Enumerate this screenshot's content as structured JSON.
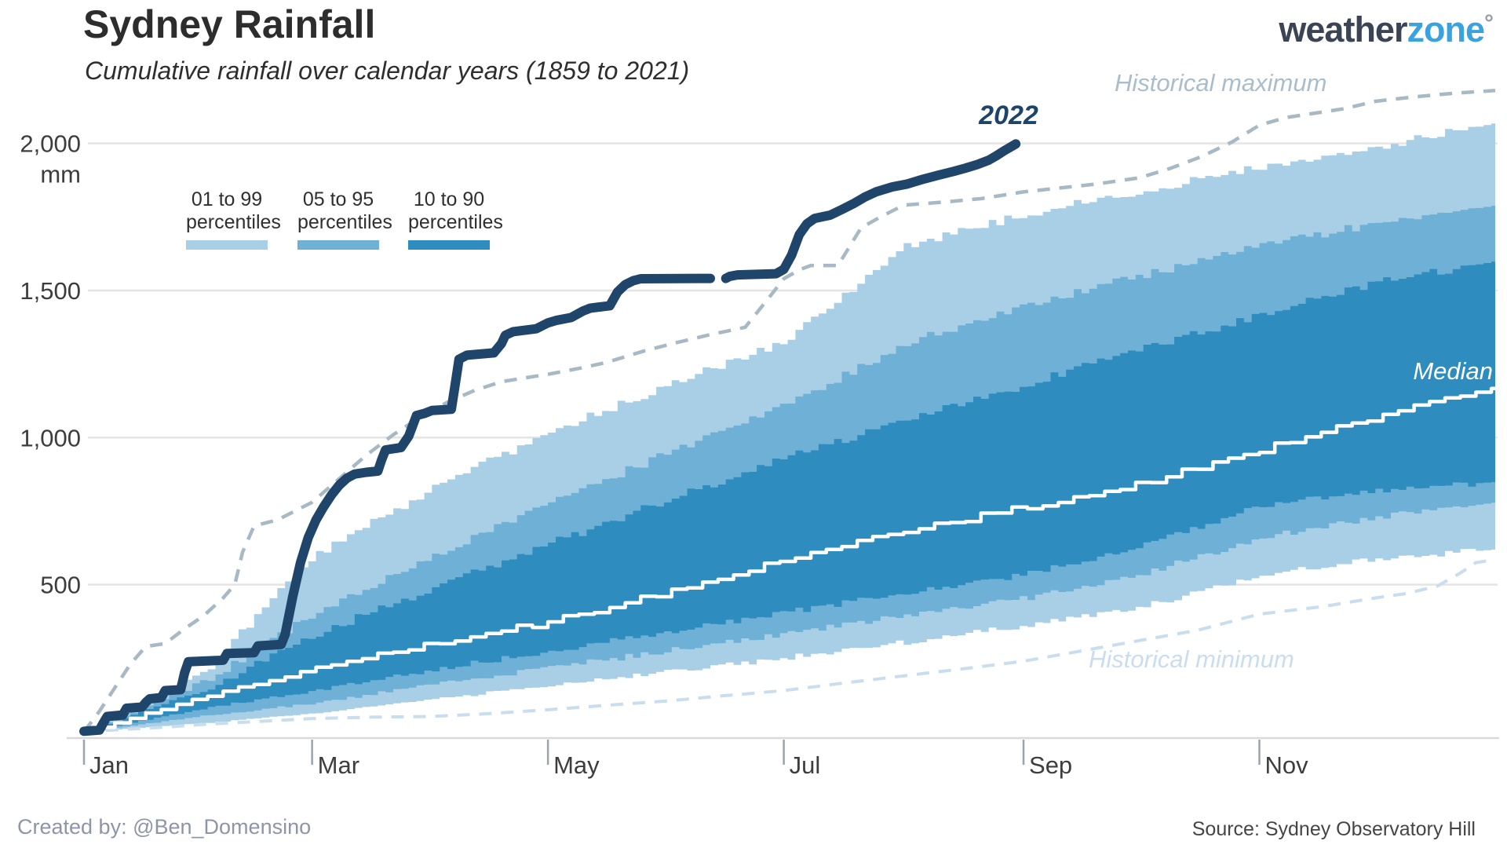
{
  "header": {
    "title": "Sydney Rainfall",
    "subtitle": "Cumulative rainfall over calendar years (1859 to 2021)"
  },
  "logo": {
    "part1": "weather",
    "part2": "zone",
    "degree": "°"
  },
  "legend": {
    "items": [
      {
        "line1": "01 to 99",
        "line2": "percentiles",
        "color": "#a9cfe6"
      },
      {
        "line1": "05 to 95",
        "line2": "percentiles",
        "color": "#6fb0d6"
      },
      {
        "line1": "10 to 90",
        "line2": "percentiles",
        "color": "#2e8cbe"
      }
    ]
  },
  "annotations": {
    "series_2022": "2022",
    "historical_max": "Historical maximum",
    "historical_min": "Historical minimum",
    "median": "Median"
  },
  "footer": {
    "created_by": "Created by: @Ben_Domensino",
    "source": "Source: Sydney Observatory Hill"
  },
  "colors": {
    "band_light": "#a9cfe6",
    "band_medium": "#6fb0d6",
    "band_dark": "#2e8cbe",
    "line_2022": "#1f456b",
    "median_line": "#ffffff",
    "hist_max_line": "#a7b9c5",
    "hist_min_line": "#c8ddee",
    "gridline": "#e4e4e4",
    "axis_line": "#d9d9d9",
    "tick": "#9aa4ad",
    "axis_text": "#3d3d3d"
  },
  "chart_data": {
    "type": "area",
    "title": "Sydney Rainfall",
    "subtitle": "Cumulative rainfall over calendar years (1859 to 2021)",
    "ylabel": "mm",
    "ylim": [
      0,
      2250
    ],
    "x_domain_days": [
      0,
      365
    ],
    "x_axis": {
      "tick_days": [
        0,
        59,
        120,
        181,
        243,
        304
      ],
      "tick_labels": [
        "Jan",
        "Mar",
        "May",
        "Jul",
        "Sep",
        "Nov"
      ]
    },
    "y_axis": {
      "ticks": [
        500,
        1000,
        1500,
        2000
      ],
      "tick_labels": [
        "500",
        "1,000",
        "1,500",
        "2,000"
      ],
      "unit_label": "mm"
    },
    "month_anchor_days": [
      0,
      31,
      59,
      90,
      120,
      151,
      181,
      212,
      243,
      273,
      304,
      334,
      365
    ],
    "percentile_bands": [
      {
        "name": "01 to 99 percentiles",
        "color": "#a9cfe6",
        "lower": [
          0,
          30,
          62,
          110,
          158,
          205,
          252,
          305,
          362,
          425,
          530,
          590,
          620
        ],
        "upper": [
          0,
          211,
          600,
          830,
          1020,
          1180,
          1330,
          1650,
          1760,
          1840,
          1920,
          1990,
          2070
        ]
      },
      {
        "name": "05 to 95 percentiles",
        "color": "#6fb0d6",
        "lower": [
          0,
          55,
          97,
          162,
          218,
          276,
          334,
          396,
          455,
          536,
          660,
          730,
          780
        ],
        "upper": [
          0,
          174,
          400,
          600,
          780,
          950,
          1110,
          1320,
          1450,
          1550,
          1650,
          1730,
          1790
        ]
      },
      {
        "name": "10 to 90 percentiles",
        "color": "#2e8cbe",
        "lower": [
          0,
          81,
          140,
          211,
          276,
          341,
          406,
          471,
          536,
          630,
          770,
          820,
          850
        ],
        "upper": [
          0,
          144,
          330,
          490,
          640,
          790,
          930,
          1060,
          1180,
          1300,
          1420,
          1530,
          1600
        ]
      }
    ],
    "median": {
      "label": "Median",
      "color": "#ffffff",
      "values": [
        0,
        120,
        211,
        302,
        373,
        477,
        584,
        682,
        763,
        844,
        958,
        1072,
        1170
      ]
    },
    "historical_max": {
      "label": "Historical maximum",
      "color": "#a7b9c5",
      "points": [
        [
          0,
          0
        ],
        [
          4,
          70
        ],
        [
          8,
          150
        ],
        [
          12,
          230
        ],
        [
          16,
          290
        ],
        [
          21,
          300
        ],
        [
          26,
          350
        ],
        [
          31,
          395
        ],
        [
          36,
          455
        ],
        [
          39,
          500
        ],
        [
          41,
          610
        ],
        [
          44,
          700
        ],
        [
          50,
          720
        ],
        [
          59,
          780
        ],
        [
          66,
          860
        ],
        [
          73,
          940
        ],
        [
          80,
          1010
        ],
        [
          87,
          1070
        ],
        [
          94,
          1120
        ],
        [
          101,
          1160
        ],
        [
          108,
          1190
        ],
        [
          115,
          1205
        ],
        [
          120,
          1215
        ],
        [
          128,
          1235
        ],
        [
          135,
          1255
        ],
        [
          145,
          1295
        ],
        [
          153,
          1322
        ],
        [
          162,
          1350
        ],
        [
          171,
          1375
        ],
        [
          177,
          1473
        ],
        [
          181,
          1540
        ],
        [
          185,
          1570
        ],
        [
          188,
          1585
        ],
        [
          195,
          1585
        ],
        [
          201,
          1713
        ],
        [
          206,
          1750
        ],
        [
          212,
          1790
        ],
        [
          222,
          1800
        ],
        [
          232,
          1812
        ],
        [
          243,
          1835
        ],
        [
          252,
          1848
        ],
        [
          262,
          1862
        ],
        [
          273,
          1883
        ],
        [
          281,
          1915
        ],
        [
          289,
          1955
        ],
        [
          297,
          2005
        ],
        [
          304,
          2062
        ],
        [
          311,
          2088
        ],
        [
          318,
          2102
        ],
        [
          326,
          2118
        ],
        [
          334,
          2143
        ],
        [
          344,
          2158
        ],
        [
          354,
          2170
        ],
        [
          365,
          2180
        ]
      ]
    },
    "historical_min": {
      "label": "Historical minimum",
      "color": "#c8ddee",
      "points": [
        [
          0,
          0
        ],
        [
          10,
          8
        ],
        [
          20,
          15
        ],
        [
          31,
          25
        ],
        [
          45,
          35
        ],
        [
          59,
          45
        ],
        [
          75,
          50
        ],
        [
          90,
          52
        ],
        [
          105,
          62
        ],
        [
          120,
          75
        ],
        [
          135,
          90
        ],
        [
          151,
          105
        ],
        [
          165,
          122
        ],
        [
          181,
          140
        ],
        [
          196,
          165
        ],
        [
          212,
          190
        ],
        [
          228,
          215
        ],
        [
          243,
          240
        ],
        [
          258,
          275
        ],
        [
          273,
          310
        ],
        [
          288,
          345
        ],
        [
          304,
          400
        ],
        [
          320,
          425
        ],
        [
          334,
          455
        ],
        [
          342,
          470
        ],
        [
          350,
          495
        ],
        [
          356,
          540
        ],
        [
          360,
          575
        ],
        [
          365,
          585
        ]
      ]
    },
    "series_2022": {
      "label": "2022",
      "color": "#1f456b",
      "segments": [
        [
          [
            0,
            2
          ],
          [
            4,
            6
          ],
          [
            5,
            30
          ],
          [
            6,
            52
          ],
          [
            10,
            57
          ],
          [
            11,
            80
          ],
          [
            15,
            84
          ],
          [
            16,
            100
          ],
          [
            17,
            112
          ],
          [
            20,
            116
          ],
          [
            21,
            140
          ],
          [
            25,
            143
          ],
          [
            26,
            200
          ],
          [
            27,
            238
          ],
          [
            30,
            240
          ],
          [
            36,
            243
          ],
          [
            37,
            266
          ],
          [
            44,
            269
          ],
          [
            45,
            292
          ],
          [
            51,
            297
          ],
          [
            52,
            330
          ],
          [
            54,
            460
          ],
          [
            56,
            575
          ],
          [
            58,
            660
          ],
          [
            60,
            720
          ],
          [
            62,
            765
          ],
          [
            64,
            805
          ],
          [
            66,
            838
          ],
          [
            68,
            862
          ],
          [
            70,
            876
          ],
          [
            73,
            882
          ],
          [
            76,
            886
          ],
          [
            77,
            925
          ],
          [
            78,
            958
          ],
          [
            82,
            966
          ],
          [
            84,
            1005
          ],
          [
            86,
            1075
          ],
          [
            88,
            1082
          ],
          [
            90,
            1092
          ],
          [
            95,
            1096
          ],
          [
            96,
            1180
          ],
          [
            97,
            1266
          ],
          [
            99,
            1280
          ],
          [
            106,
            1288
          ],
          [
            108,
            1320
          ],
          [
            109,
            1348
          ],
          [
            111,
            1360
          ],
          [
            117,
            1370
          ],
          [
            120,
            1390
          ],
          [
            122,
            1398
          ],
          [
            126,
            1408
          ],
          [
            129,
            1430
          ],
          [
            131,
            1440
          ],
          [
            136,
            1448
          ],
          [
            138,
            1495
          ],
          [
            140,
            1520
          ],
          [
            142,
            1533
          ],
          [
            144,
            1540
          ],
          [
            162,
            1541
          ]
        ],
        [
          [
            166,
            1541
          ],
          [
            167,
            1548
          ],
          [
            169,
            1553
          ],
          [
            179,
            1557
          ],
          [
            181,
            1572
          ],
          [
            183,
            1620
          ],
          [
            185,
            1690
          ],
          [
            187,
            1727
          ],
          [
            189,
            1745
          ],
          [
            193,
            1756
          ],
          [
            196,
            1775
          ],
          [
            199,
            1795
          ],
          [
            202,
            1818
          ],
          [
            205,
            1836
          ],
          [
            209,
            1852
          ],
          [
            213,
            1862
          ],
          [
            217,
            1878
          ],
          [
            221,
            1892
          ],
          [
            225,
            1905
          ],
          [
            228,
            1916
          ],
          [
            231,
            1928
          ],
          [
            234,
            1943
          ],
          [
            236,
            1958
          ],
          [
            238,
            1975
          ],
          [
            240,
            1990
          ],
          [
            241,
            1998
          ]
        ]
      ]
    }
  }
}
